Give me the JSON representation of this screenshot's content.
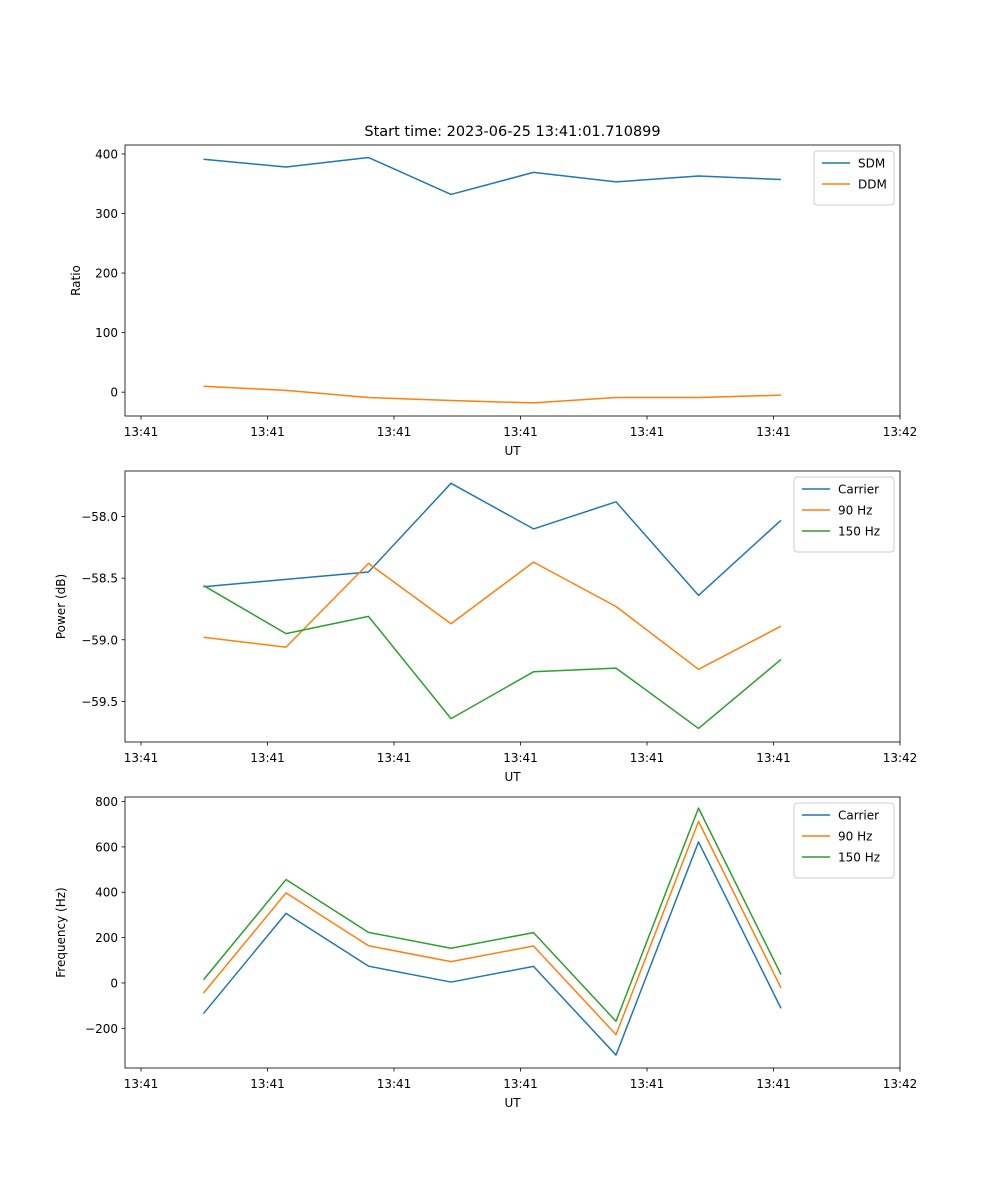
{
  "title": "Start time: 2023-06-25 13:41:01.710899",
  "chart_data": [
    {
      "type": "line",
      "ylabel": "Ratio",
      "xlabel": "UT",
      "x_tick_labels": [
        "13:41",
        "13:41",
        "13:41",
        "13:41",
        "13:41",
        "13:41",
        "13:42"
      ],
      "y_ticks": [
        0,
        100,
        200,
        300,
        400
      ],
      "ylim": [
        -40,
        415
      ],
      "legend": "top-right",
      "series": [
        {
          "name": "SDM",
          "color": "#1f77b4",
          "values": [
            391,
            378,
            394,
            332,
            369,
            353,
            363,
            357
          ]
        },
        {
          "name": "DDM",
          "color": "#ff7f0e",
          "values": [
            10,
            3,
            -9,
            -14,
            -18,
            -9,
            -9,
            -5
          ]
        }
      ]
    },
    {
      "type": "line",
      "ylabel": "Power (dB)",
      "xlabel": "UT",
      "x_tick_labels": [
        "13:41",
        "13:41",
        "13:41",
        "13:41",
        "13:41",
        "13:41",
        "13:42"
      ],
      "y_ticks": [
        -59.5,
        -59.0,
        -58.5,
        -58.0
      ],
      "y_tick_labels": [
        "−59.5",
        "−59.0",
        "−58.5",
        "−58.0"
      ],
      "ylim": [
        -59.83,
        -57.63
      ],
      "legend": "top-right",
      "series": [
        {
          "name": "Carrier",
          "color": "#1f77b4",
          "values": [
            -58.57,
            -58.51,
            -58.45,
            -57.73,
            -58.1,
            -57.88,
            -58.64,
            -58.03
          ]
        },
        {
          "name": "90 Hz",
          "color": "#ff7f0e",
          "values": [
            -58.98,
            -59.06,
            -58.38,
            -58.87,
            -58.37,
            -58.73,
            -59.24,
            -58.89
          ]
        },
        {
          "name": "150 Hz",
          "color": "#2ca02c",
          "values": [
            -58.56,
            -58.95,
            -58.81,
            -59.64,
            -59.26,
            -59.23,
            -59.72,
            -59.16
          ]
        }
      ]
    },
    {
      "type": "line",
      "ylabel": "Frequency (Hz)",
      "xlabel": "UT",
      "x_tick_labels": [
        "13:41",
        "13:41",
        "13:41",
        "13:41",
        "13:41",
        "13:41",
        "13:42"
      ],
      "y_ticks": [
        -200,
        0,
        200,
        400,
        600,
        800
      ],
      "y_tick_labels": [
        "−200",
        "0",
        "200",
        "400",
        "600",
        "800"
      ],
      "ylim": [
        -375,
        820
      ],
      "legend": "top-right",
      "series": [
        {
          "name": "Carrier",
          "color": "#1f77b4",
          "values": [
            -135,
            307,
            74,
            4,
            73,
            -318,
            622,
            -112
          ]
        },
        {
          "name": "90 Hz",
          "color": "#ff7f0e",
          "values": [
            -45,
            397,
            164,
            94,
            163,
            -228,
            712,
            -22
          ]
        },
        {
          "name": "150 Hz",
          "color": "#2ca02c",
          "values": [
            14,
            456,
            223,
            153,
            222,
            -169,
            771,
            37
          ]
        }
      ]
    }
  ]
}
